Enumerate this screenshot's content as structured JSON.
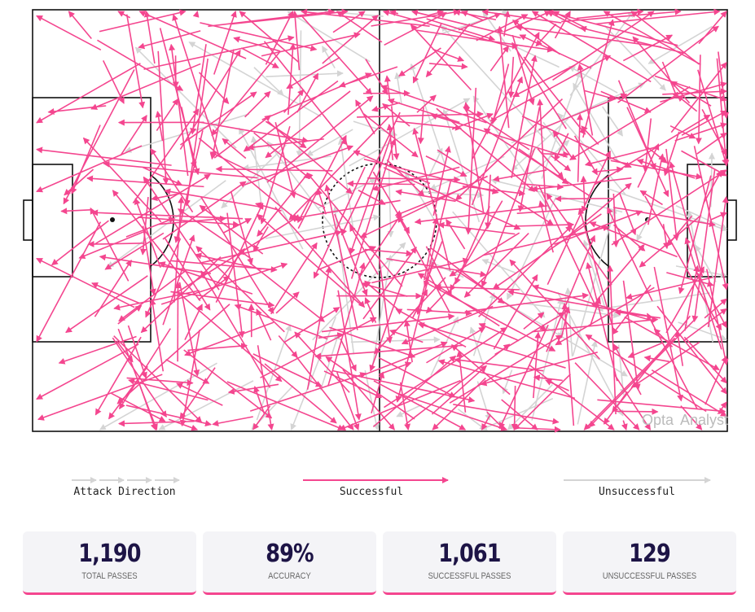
{
  "legend": {
    "attack_direction": "Attack Direction",
    "successful": "Successful",
    "unsuccessful": "Unsuccessful"
  },
  "watermark": {
    "brand": "Opta",
    "product": "Analyst"
  },
  "stats": [
    {
      "value": "1,190",
      "label": "TOTAL PASSES"
    },
    {
      "value": "89%",
      "label": "ACCURACY"
    },
    {
      "value": "1,061",
      "label": "SUCCESSFUL PASSES"
    },
    {
      "value": "129",
      "label": "UNSUCCESSFUL PASSES"
    }
  ]
}
